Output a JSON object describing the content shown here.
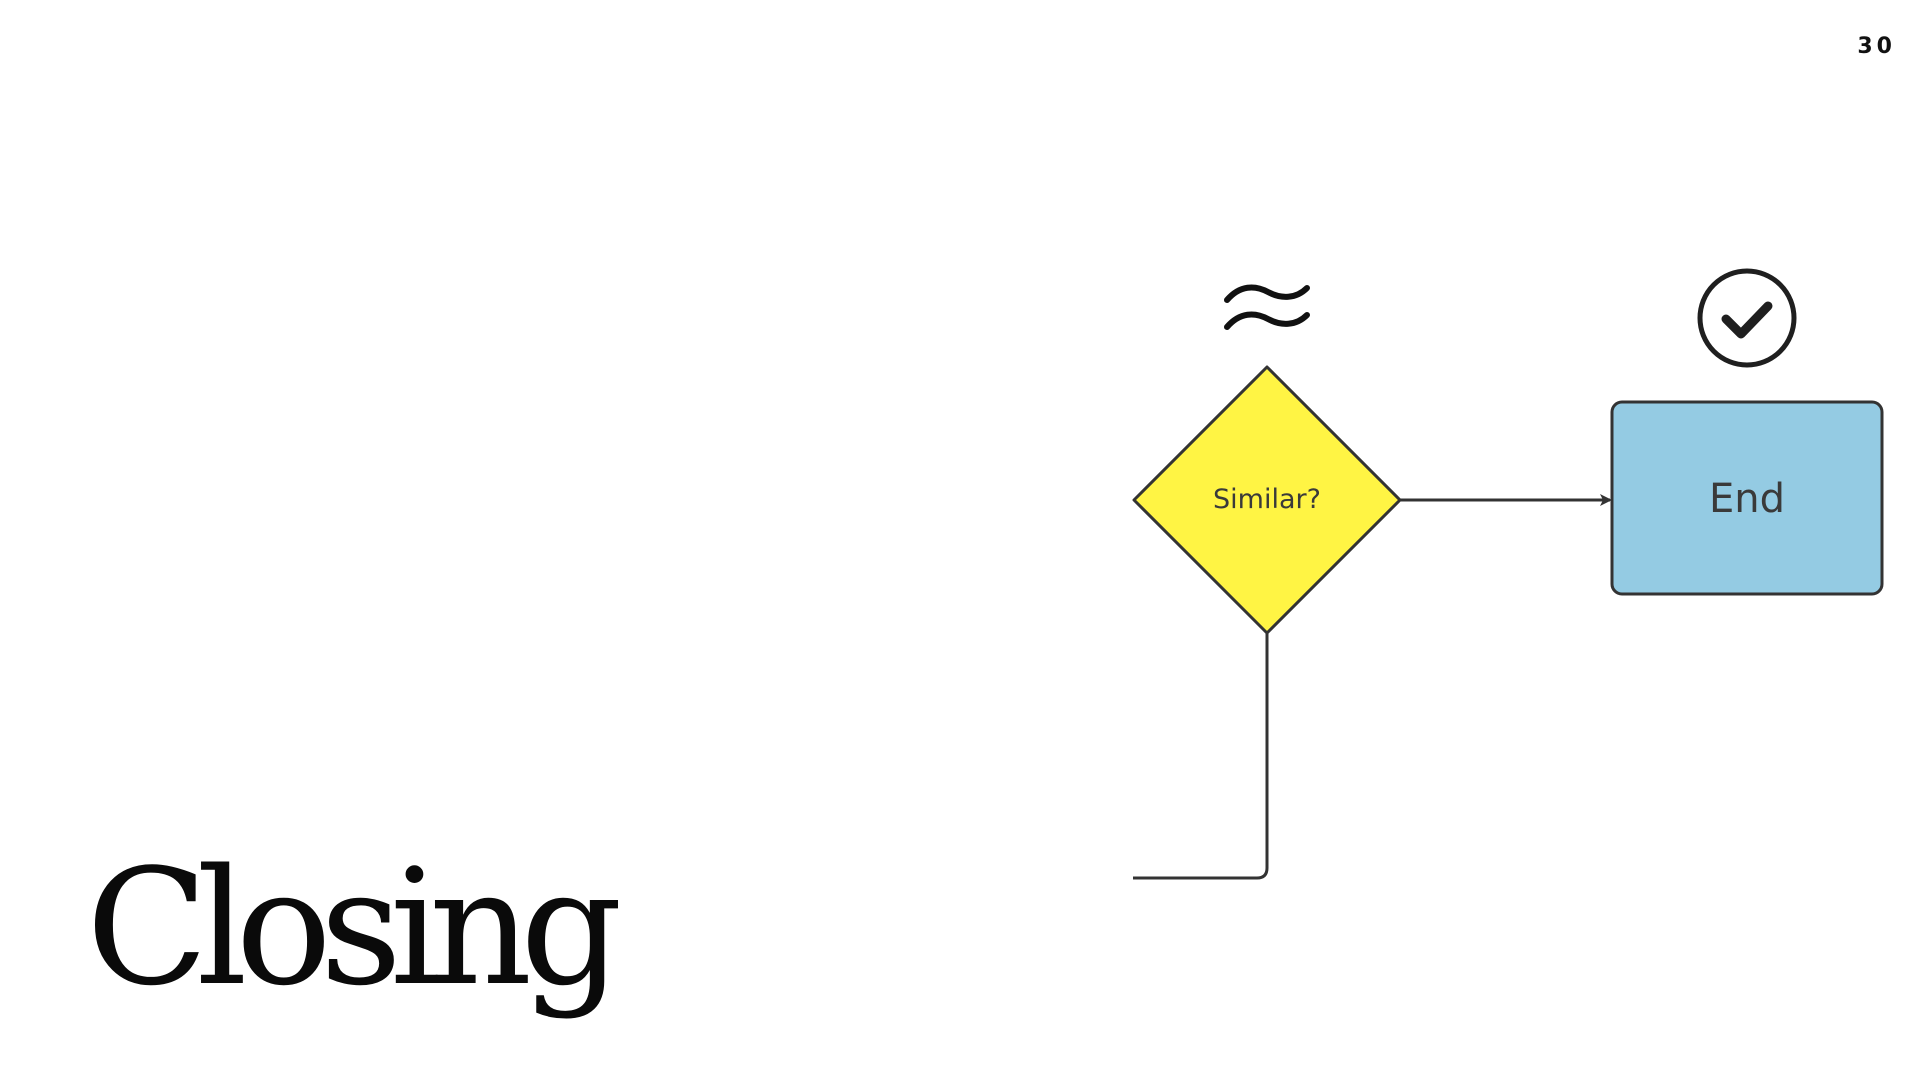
{
  "slide": {
    "number": "30",
    "title": "Closing"
  },
  "diagram": {
    "decision": {
      "label": "Similar?",
      "fill": "#FFF444",
      "icon": "approx-equal-icon"
    },
    "end": {
      "label": "End",
      "fill": "#94CBE3",
      "icon": "check-circle-icon"
    },
    "stroke_color": "#333333"
  }
}
